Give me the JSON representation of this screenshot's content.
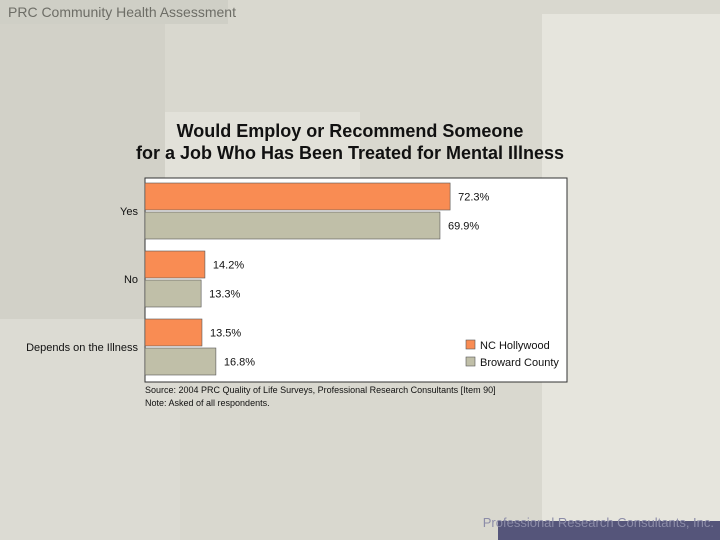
{
  "header": {
    "title": "PRC Community Health Assessment"
  },
  "footer": {
    "text": "Professional Research Consultants, Inc."
  },
  "colors": {
    "nc_hollywood": "#f98c53",
    "broward_county": "#c0bfa8",
    "axis": "#333333"
  },
  "chart_data": {
    "type": "bar",
    "orientation": "horizontal",
    "title_line1": "Would Employ or Recommend Someone",
    "title_line2": "for a Job Who Has Been Treated for Mental Illness",
    "categories": [
      "Yes",
      "No",
      "Depends on the Illness"
    ],
    "series": [
      {
        "name": "NC Hollywood",
        "values": [
          72.3,
          14.2,
          13.5
        ],
        "labels": [
          "72.3%",
          "14.2%",
          "13.5%"
        ]
      },
      {
        "name": "Broward County",
        "values": [
          69.9,
          13.3,
          16.8
        ],
        "labels": [
          "69.9%",
          "13.3%",
          "16.8%"
        ]
      }
    ],
    "xlim": [
      0,
      100
    ],
    "legend_position": "bottom-right",
    "source": "Source: 2004 PRC Quality of Life Surveys, Professional Research Consultants [Item 90]",
    "note": "Note:     Asked of all respondents."
  }
}
